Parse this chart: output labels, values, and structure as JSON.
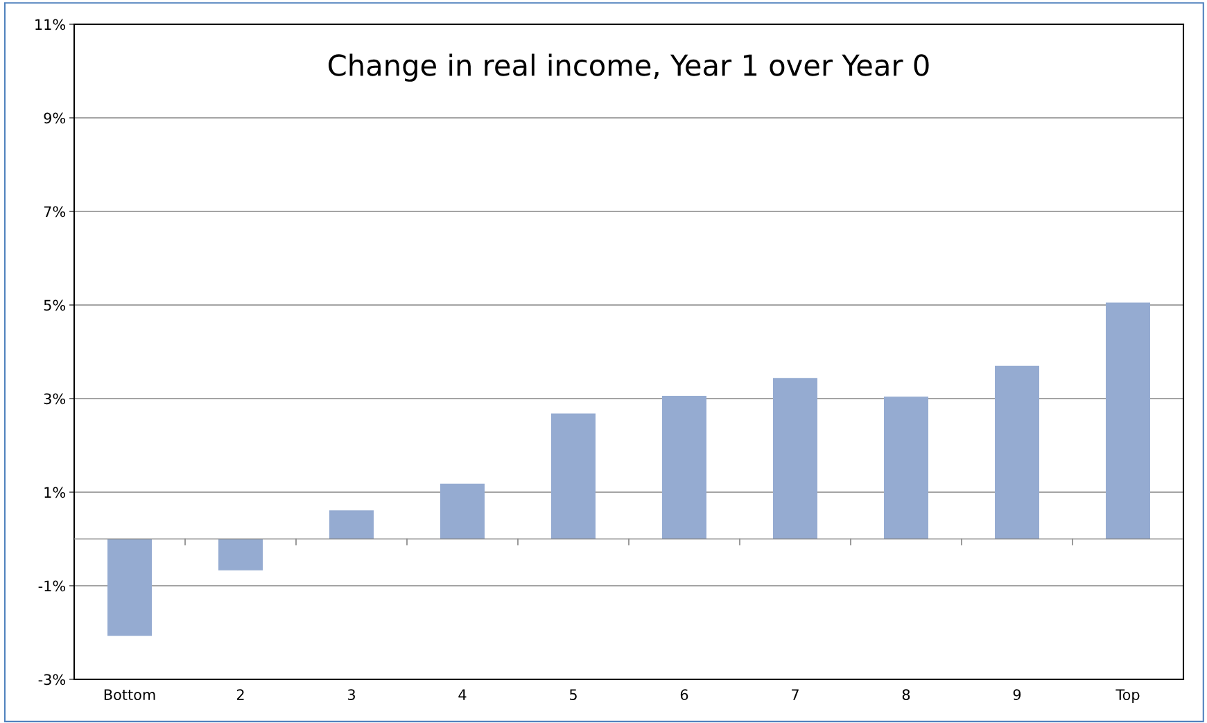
{
  "chart_data": {
    "type": "bar",
    "title": "Change in real income, Year 1 over Year 0",
    "categories": [
      "Bottom",
      "2",
      "3",
      "4",
      "5",
      "6",
      "7",
      "8",
      "9",
      "Top"
    ],
    "values": [
      -2.07,
      -0.67,
      0.61,
      1.18,
      2.68,
      3.06,
      3.44,
      3.04,
      3.7,
      5.05
    ],
    "color": "#95abd1",
    "ylim": [
      -3,
      11
    ],
    "yticks": [
      {
        "value": -3,
        "label": "-3%"
      },
      {
        "value": -1,
        "label": "-1%"
      },
      {
        "value": 1,
        "label": "1%"
      },
      {
        "value": 3,
        "label": "3%"
      },
      {
        "value": 5,
        "label": "5%"
      },
      {
        "value": 7,
        "label": "7%"
      },
      {
        "value": 9,
        "label": "9%"
      },
      {
        "value": 11,
        "label": "11%"
      }
    ],
    "grid": "y"
  }
}
